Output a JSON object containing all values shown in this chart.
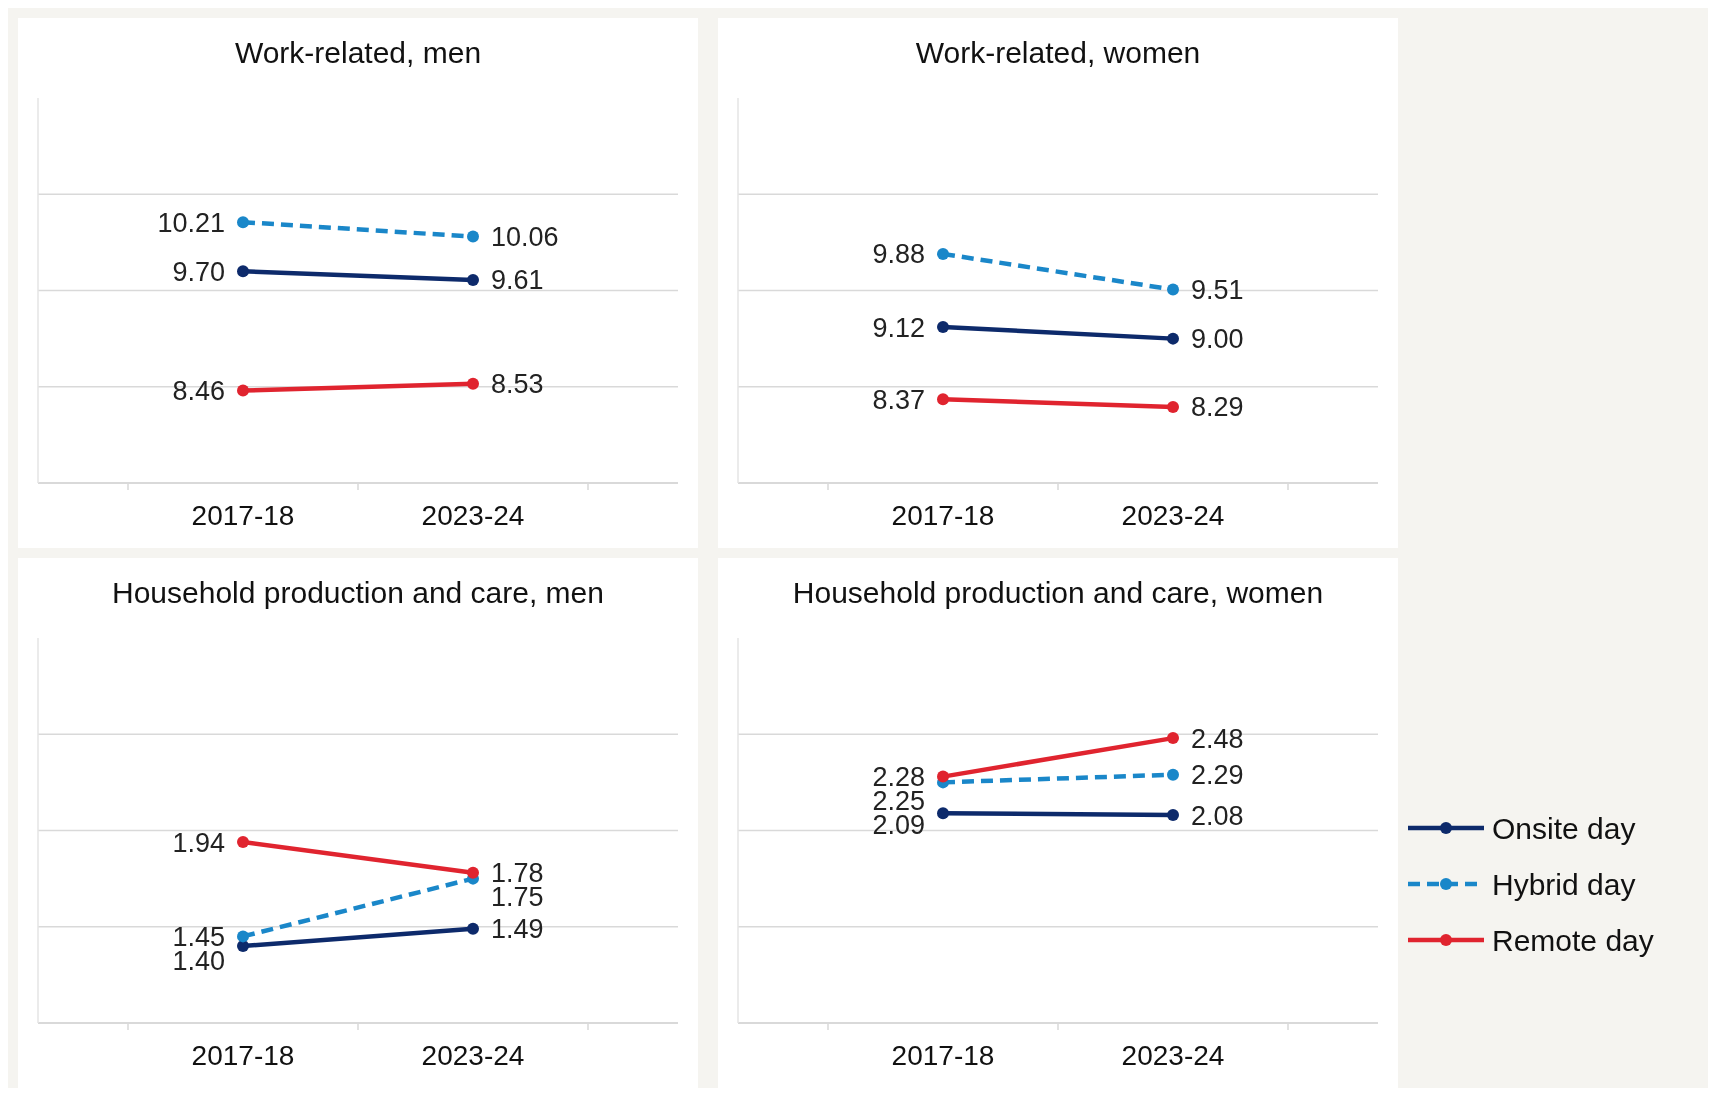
{
  "chart_data": [
    {
      "type": "line",
      "title": "Work-related, men",
      "categories": [
        "2017-18",
        "2023-24"
      ],
      "ylim": [
        7.5,
        11.5
      ],
      "yticks": [
        {
          "value": 8.5,
          "label": null
        },
        {
          "value": 9.5,
          "label": null
        },
        {
          "value": 10.5,
          "label": null
        }
      ],
      "grid": "y",
      "tick_labels": "x",
      "marker": "circle",
      "legend": "right",
      "series": [
        {
          "name": "Onsite day",
          "color": "#0d2a6b",
          "line_style": "solid",
          "values": [
            9.7,
            9.61
          ],
          "value_labels": [
            "9.70",
            "9.61"
          ]
        },
        {
          "name": "Hybrid day",
          "color": "#1a87c9",
          "line_style": "dashed",
          "values": [
            10.21,
            10.06
          ],
          "value_labels": [
            "10.21",
            "10.06"
          ]
        },
        {
          "name": "Remote day",
          "color": "#e0242f",
          "line_style": "solid",
          "values": [
            8.46,
            8.53
          ],
          "value_labels": [
            "8.46",
            "8.53"
          ]
        }
      ]
    },
    {
      "type": "line",
      "title": "Work-related, women",
      "categories": [
        "2017-18",
        "2023-24"
      ],
      "ylim": [
        7.5,
        11.5
      ],
      "yticks": [
        {
          "value": 8.5,
          "label": null
        },
        {
          "value": 9.5,
          "label": null
        },
        {
          "value": 10.5,
          "label": null
        }
      ],
      "grid": "y",
      "tick_labels": "x",
      "marker": "circle",
      "legend": "right",
      "series": [
        {
          "name": "Onsite day",
          "color": "#0d2a6b",
          "line_style": "solid",
          "values": [
            9.12,
            9.0
          ],
          "value_labels": [
            "9.12",
            "9.00"
          ]
        },
        {
          "name": "Hybrid day",
          "color": "#1a87c9",
          "line_style": "dashed",
          "values": [
            9.88,
            9.51
          ],
          "value_labels": [
            "9.88",
            "9.51"
          ]
        },
        {
          "name": "Remote day",
          "color": "#e0242f",
          "line_style": "solid",
          "values": [
            8.37,
            8.29
          ],
          "value_labels": [
            "8.37",
            "8.29"
          ]
        }
      ]
    },
    {
      "type": "line",
      "title": "Household production and care, men",
      "categories": [
        "2017-18",
        "2023-24"
      ],
      "ylim": [
        1,
        3
      ],
      "yticks": [
        {
          "value": 1.5,
          "label": null
        },
        {
          "value": 2,
          "label": null
        },
        {
          "value": 2.5,
          "label": null
        }
      ],
      "grid": "y",
      "tick_labels": "x",
      "marker": "circle",
      "legend": "right",
      "series": [
        {
          "name": "Onsite day",
          "color": "#0d2a6b",
          "line_style": "solid",
          "values": [
            1.4,
            1.49
          ],
          "value_labels": [
            "1.40",
            "1.49"
          ]
        },
        {
          "name": "Hybrid day",
          "color": "#1a87c9",
          "line_style": "dashed",
          "values": [
            1.45,
            1.75
          ],
          "value_labels": [
            "1.45",
            "1.75"
          ]
        },
        {
          "name": "Remote day",
          "color": "#e0242f",
          "line_style": "solid",
          "values": [
            1.94,
            1.78
          ],
          "value_labels": [
            "1.94",
            "1.78"
          ]
        }
      ]
    },
    {
      "type": "line",
      "title": "Household production and care, women",
      "categories": [
        "2017-18",
        "2023-24"
      ],
      "ylim": [
        1,
        3
      ],
      "yticks": [
        {
          "value": 1.5,
          "label": null
        },
        {
          "value": 2,
          "label": null
        },
        {
          "value": 2.5,
          "label": null
        }
      ],
      "grid": "y",
      "tick_labels": "x",
      "marker": "circle",
      "legend": "right",
      "series": [
        {
          "name": "Onsite day",
          "color": "#0d2a6b",
          "line_style": "solid",
          "values": [
            2.09,
            2.08
          ],
          "value_labels": [
            "2.09",
            "2.08"
          ]
        },
        {
          "name": "Hybrid day",
          "color": "#1a87c9",
          "line_style": "dashed",
          "values": [
            2.25,
            2.29
          ],
          "value_labels": [
            "2.25",
            "2.29"
          ]
        },
        {
          "name": "Remote day",
          "color": "#e0242f",
          "line_style": "solid",
          "values": [
            2.28,
            2.48
          ],
          "value_labels": [
            "2.28",
            "2.48"
          ]
        }
      ]
    }
  ]
}
